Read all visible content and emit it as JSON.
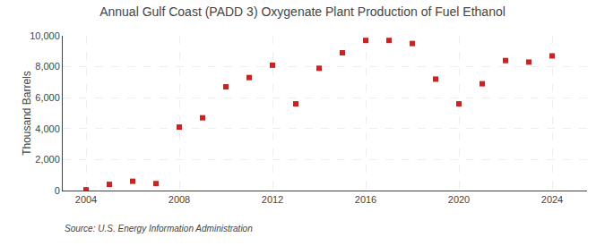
{
  "chart_data": {
    "type": "scatter",
    "title": "Annual Gulf Coast (PADD 3) Oxygenate Plant Production of Fuel Ethanol",
    "ylabel": "Thousand Barrels",
    "annotations": [
      "Source: U.S. Energy Information Administration"
    ],
    "x": [
      2004,
      2005,
      2006,
      2007,
      2008,
      2009,
      2010,
      2011,
      2012,
      2013,
      2014,
      2015,
      2016,
      2017,
      2018,
      2019,
      2020,
      2021,
      2022,
      2023,
      2024
    ],
    "values": [
      50,
      400,
      600,
      450,
      4100,
      4700,
      6700,
      7300,
      8100,
      5600,
      7900,
      8900,
      9700,
      9700,
      9500,
      7200,
      5600,
      6900,
      8400,
      8300,
      8700
    ],
    "color": "#cc2222",
    "marker": "square",
    "xlim": [
      2003,
      2025.5
    ],
    "xticks": [
      2004,
      2008,
      2012,
      2016,
      2020,
      2024
    ],
    "ylim": [
      0,
      10000
    ],
    "yticks": [
      0,
      {
        "value": 2000,
        "label": "2,000"
      },
      {
        "value": 4000,
        "label": "4,000"
      },
      {
        "value": 6000,
        "label": "6,000"
      },
      {
        "value": 8000,
        "label": "8,000"
      },
      {
        "value": 10000,
        "label": "10,000"
      }
    ],
    "grid": true
  }
}
